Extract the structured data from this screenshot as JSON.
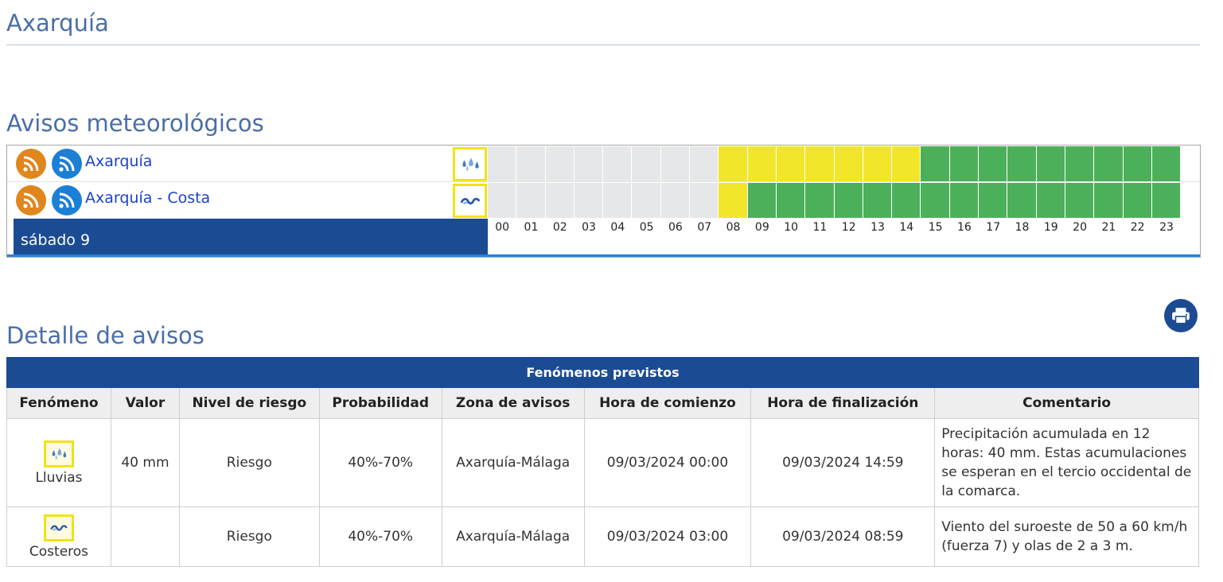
{
  "page": {
    "zone_title": "Axarquía",
    "avisos_title": "Avisos meteorológicos",
    "detalle_title": "Detalle de avisos"
  },
  "timeline": {
    "rows": [
      {
        "zone": "Axarquía",
        "phenomenon_icon": "rain-drops-icon",
        "levels": [
          "gray",
          "gray",
          "gray",
          "gray",
          "gray",
          "gray",
          "gray",
          "gray",
          "yellow",
          "yellow",
          "yellow",
          "yellow",
          "yellow",
          "yellow",
          "yellow",
          "green",
          "green",
          "green",
          "green",
          "green",
          "green",
          "green",
          "green",
          "green"
        ]
      },
      {
        "zone": "Axarquía - Costa",
        "phenomenon_icon": "coastal-waves-icon",
        "levels": [
          "gray",
          "gray",
          "gray",
          "gray",
          "gray",
          "gray",
          "gray",
          "gray",
          "yellow",
          "green",
          "green",
          "green",
          "green",
          "green",
          "green",
          "green",
          "green",
          "green",
          "green",
          "green",
          "green",
          "green",
          "green",
          "green"
        ]
      }
    ],
    "day_label": "sábado 9",
    "hours": [
      "00",
      "01",
      "02",
      "03",
      "04",
      "05",
      "06",
      "07",
      "08",
      "09",
      "10",
      "11",
      "12",
      "13",
      "14",
      "15",
      "16",
      "17",
      "18",
      "19",
      "20",
      "21",
      "22",
      "23"
    ],
    "colors": {
      "gray": "#e6e7e9",
      "yellow": "#f2e62a",
      "green": "#4cb05a"
    }
  },
  "detail": {
    "caption": "Fenómenos previstos",
    "headers": [
      "Fenómeno",
      "Valor",
      "Nivel de riesgo",
      "Probabilidad",
      "Zona de avisos",
      "Hora de comienzo",
      "Hora de finalización",
      "Comentario"
    ],
    "rows": [
      {
        "icon": "rain-drops-icon",
        "phenomenon": "Lluvias",
        "value": "40 mm",
        "risk": "Riesgo",
        "probability": "40%-70%",
        "zone": "Axarquía-Málaga",
        "start": "09/03/2024 00:00",
        "end": "09/03/2024 14:59",
        "comment": "Precipitación acumulada en 12 horas: 40 mm. Estas acumulaciones se esperan en el tercio occidental de la comarca."
      },
      {
        "icon": "coastal-waves-icon",
        "phenomenon": "Costeros",
        "value": "",
        "risk": "Riesgo",
        "probability": "40%-70%",
        "zone": "Axarquía-Málaga",
        "start": "09/03/2024 03:00",
        "end": "09/03/2024 08:59",
        "comment": "Viento del suroeste de 50 a 60 km/h (fuerza 7) y olas de 2 a 3 m."
      }
    ]
  }
}
